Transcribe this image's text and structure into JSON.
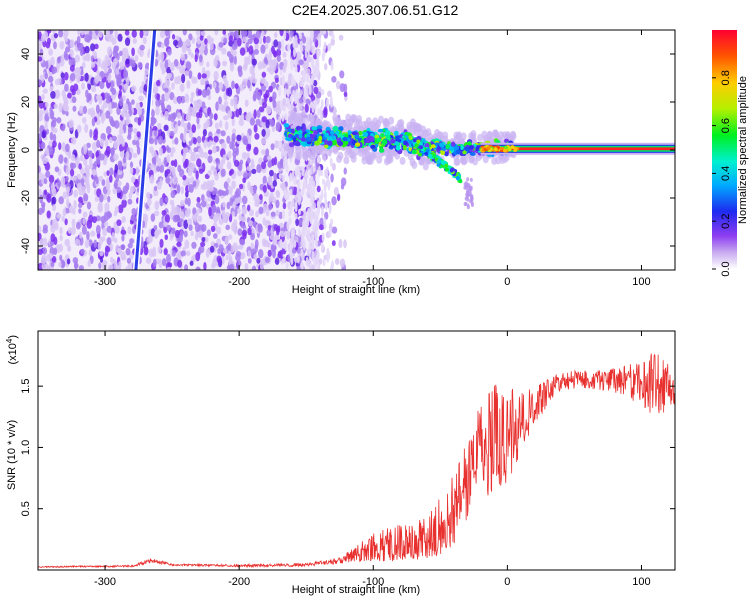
{
  "title": "C2E4.2025.307.06.51.G12",
  "chart_data": [
    {
      "type": "heatmap",
      "xlabel": "Height of straight line (km)",
      "ylabel": "Frequency (Hz)",
      "xlim": [
        -350,
        125
      ],
      "ylim": [
        -50,
        50
      ],
      "xticks": [
        -300,
        -200,
        -100,
        0,
        100
      ],
      "yticks": [
        -40,
        -20,
        0,
        20,
        40
      ],
      "colorbar": {
        "label": "Normalized spectral amplitude",
        "range": [
          0.0,
          1.0
        ],
        "ticks": [
          "0.0",
          "0.2",
          "0.4",
          "0.6",
          "0.8"
        ]
      },
      "features": [
        {
          "name": "noise-field",
          "x_range": [
            -350,
            -140
          ],
          "y_range": [
            -50,
            50
          ],
          "amplitude": 0.05
        },
        {
          "name": "tilted-trace",
          "x_start": -277,
          "x_end": -263,
          "y_start": -50,
          "y_end": 50,
          "amplitude": 0.15
        },
        {
          "name": "spectral-cluster",
          "x_range": [
            -165,
            5
          ],
          "y_center": 3,
          "amplitude": 0.35
        },
        {
          "name": "carrier-line",
          "x_range": [
            -20,
            125
          ],
          "y_center": 0.5,
          "amplitude": 0.95
        }
      ]
    },
    {
      "type": "line",
      "xlabel": "Height of straight line (km)",
      "ylabel": "SNR (10 * v/v)",
      "scale_label": "(x10",
      "scale_exp": "4",
      "scale_close": ")",
      "xlim": [
        -350,
        125
      ],
      "ylim": [
        0,
        19500
      ],
      "xticks": [
        -300,
        -200,
        -100,
        0,
        100
      ],
      "yticks": [
        5000,
        10000,
        15000
      ],
      "ytick_labels": [
        "0.5",
        "1.0",
        "1.5"
      ],
      "series": [
        {
          "name": "SNR",
          "color": "#e8302e",
          "envelope": [
            [
              -350,
              200,
              300
            ],
            [
              -280,
              250,
              400
            ],
            [
              -265,
              600,
              1000
            ],
            [
              -250,
              350,
              500
            ],
            [
              -200,
              250,
              450
            ],
            [
              -150,
              300,
              550
            ],
            [
              -125,
              500,
              1000
            ],
            [
              -110,
              700,
              2200
            ],
            [
              -100,
              700,
              3000
            ],
            [
              -80,
              700,
              3800
            ],
            [
              -60,
              900,
              4300
            ],
            [
              -50,
              1300,
              6300
            ],
            [
              -40,
              2000,
              8000
            ],
            [
              -30,
              4000,
              11000
            ],
            [
              -25,
              6500,
              13500
            ],
            [
              -20,
              8000,
              15000
            ],
            [
              -15,
              6000,
              14500
            ],
            [
              -10,
              6500,
              15200
            ],
            [
              0,
              7000,
              15000
            ],
            [
              10,
              9500,
              14800
            ],
            [
              20,
              11500,
              15000
            ],
            [
              30,
              13500,
              15700
            ],
            [
              40,
              14700,
              16200
            ],
            [
              60,
              14800,
              16300
            ],
            [
              80,
              14500,
              16500
            ],
            [
              100,
              13500,
              17200
            ],
            [
              110,
              12000,
              18000
            ],
            [
              125,
              13500,
              16500
            ]
          ]
        }
      ]
    }
  ]
}
